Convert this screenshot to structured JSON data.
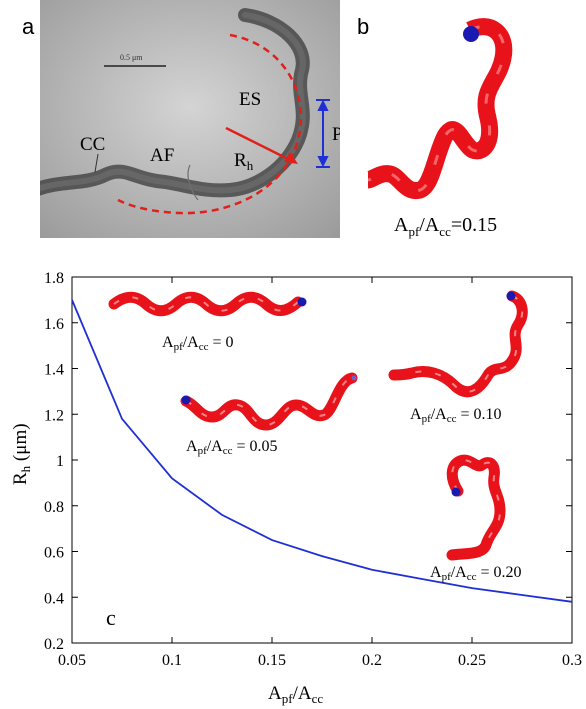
{
  "panel_a": {
    "letter": "a",
    "scale_bar": "0.5 μm",
    "labels": {
      "es": "ES",
      "cc": "CC",
      "af": "AF",
      "rh": "R",
      "rh_sub": "h",
      "p": "P"
    }
  },
  "panel_b": {
    "letter": "b",
    "caption": {
      "a1": "A",
      "s1": "pf",
      "mid": "/A",
      "s2": "cc",
      "val": "=0.15"
    }
  },
  "panel_c": {
    "letter": "c",
    "insets": [
      {
        "a1": "A",
        "s1": "pf",
        "mid": "/A",
        "s2": "cc",
        "val": " = 0"
      },
      {
        "a1": "A",
        "s1": "pf",
        "mid": "/A",
        "s2": "cc",
        "val": " = 0.05"
      },
      {
        "a1": "A",
        "s1": "pf",
        "mid": "/A",
        "s2": "cc",
        "val": " = 0.10"
      },
      {
        "a1": "A",
        "s1": "pf",
        "mid": "/A",
        "s2": "cc",
        "val": " = 0.20"
      }
    ]
  },
  "colors": {
    "cell": "#e8121a",
    "line": "#1f2fd6",
    "cap": "#1a1ab0",
    "arrow": "#e0201a"
  },
  "chart_data": {
    "type": "line",
    "title": "",
    "xlabel": {
      "a1": "A",
      "s1": "pf",
      "mid": "/A",
      "s2": "cc"
    },
    "ylabel": {
      "main": "R",
      "sub": "h",
      "unit": " (μm)"
    },
    "xlim": [
      0.05,
      0.3
    ],
    "ylim": [
      0.2,
      1.8
    ],
    "xticks": [
      0.05,
      0.1,
      0.15,
      0.2,
      0.25,
      0.3
    ],
    "xtick_labels": [
      "0.05",
      "0.1",
      "0.15",
      "0.2",
      "0.25",
      "0.3"
    ],
    "yticks": [
      0.2,
      0.4,
      0.6,
      0.8,
      1.0,
      1.2,
      1.4,
      1.6,
      1.8
    ],
    "ytick_labels": [
      "0.2",
      "0.4",
      "0.6",
      "0.8",
      "1",
      "1.2",
      "1.4",
      "1.6",
      "1.8"
    ],
    "series": [
      {
        "x": [
          0.05,
          0.075,
          0.1,
          0.125,
          0.15,
          0.175,
          0.2,
          0.225,
          0.25,
          0.275,
          0.3
        ],
        "y": [
          1.7,
          1.18,
          0.92,
          0.76,
          0.65,
          0.58,
          0.52,
          0.48,
          0.44,
          0.41,
          0.38
        ]
      }
    ]
  }
}
